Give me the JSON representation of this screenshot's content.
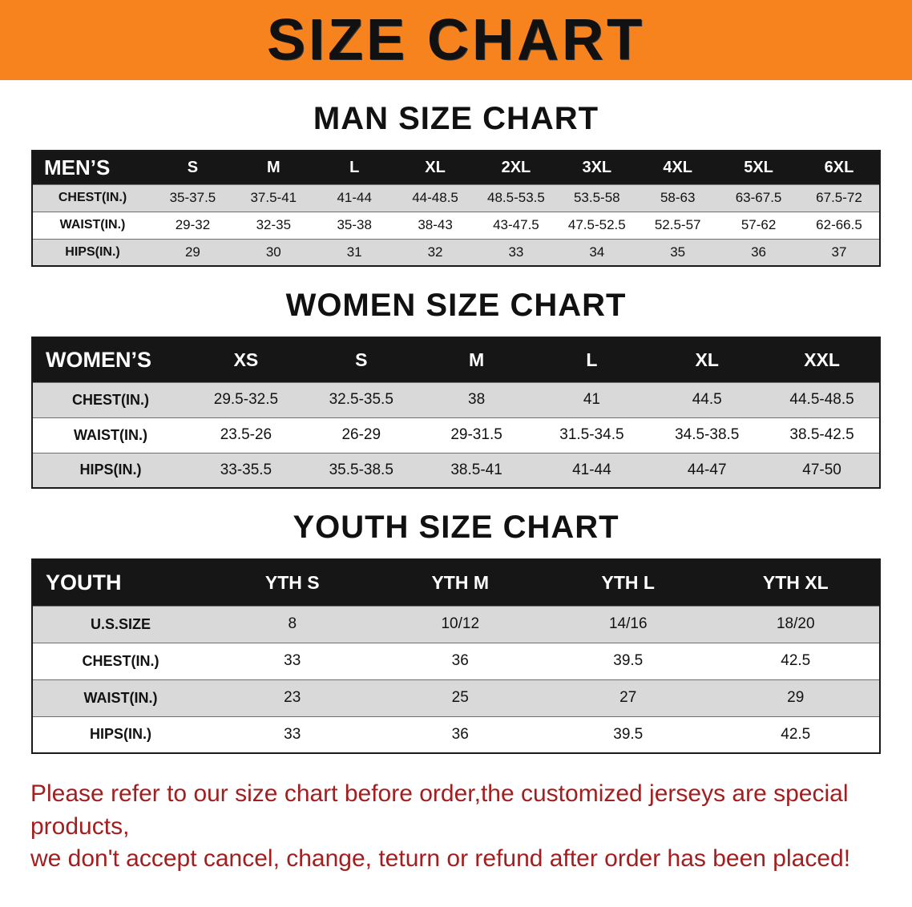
{
  "colors": {
    "banner_bg": "#F6831D",
    "header_bg": "#161616",
    "stripe": "#D9D9D9",
    "footer_red": "#A31E1E"
  },
  "banner": {
    "title": "SIZE CHART"
  },
  "sections": [
    {
      "title": "MAN SIZE CHART",
      "header_label": "MEN’S",
      "columns": [
        "S",
        "M",
        "L",
        "XL",
        "2XL",
        "3XL",
        "4XL",
        "5XL",
        "6XL"
      ],
      "rows": [
        {
          "label": "CHEST(IN.)",
          "values": [
            "35-37.5",
            "37.5-41",
            "41-44",
            "44-48.5",
            "48.5-53.5",
            "53.5-58",
            "58-63",
            "63-67.5",
            "67.5-72"
          ]
        },
        {
          "label": "WAIST(IN.)",
          "values": [
            "29-32",
            "32-35",
            "35-38",
            "38-43",
            "43-47.5",
            "47.5-52.5",
            "52.5-57",
            "57-62",
            "62-66.5"
          ]
        },
        {
          "label": "HIPS(IN.)",
          "values": [
            "29",
            "30",
            "31",
            "32",
            "33",
            "34",
            "35",
            "36",
            "37"
          ]
        }
      ]
    },
    {
      "title": "WOMEN SIZE CHART",
      "header_label": "WOMEN’S",
      "columns": [
        "XS",
        "S",
        "M",
        "L",
        "XL",
        "XXL"
      ],
      "rows": [
        {
          "label": "CHEST(IN.)",
          "values": [
            "29.5-32.5",
            "32.5-35.5",
            "38",
            "41",
            "44.5",
            "44.5-48.5"
          ]
        },
        {
          "label": "WAIST(IN.)",
          "values": [
            "23.5-26",
            "26-29",
            "29-31.5",
            "31.5-34.5",
            "34.5-38.5",
            "38.5-42.5"
          ]
        },
        {
          "label": "HIPS(IN.)",
          "values": [
            "33-35.5",
            "35.5-38.5",
            "38.5-41",
            "41-44",
            "44-47",
            "47-50"
          ]
        }
      ]
    },
    {
      "title": "YOUTH SIZE CHART",
      "header_label": "YOUTH",
      "columns": [
        "YTH S",
        "YTH M",
        "YTH L",
        "YTH XL"
      ],
      "rows": [
        {
          "label": "U.S.SIZE",
          "values": [
            "8",
            "10/12",
            "14/16",
            "18/20"
          ]
        },
        {
          "label": "CHEST(IN.)",
          "values": [
            "33",
            "36",
            "39.5",
            "42.5"
          ]
        },
        {
          "label": "WAIST(IN.)",
          "values": [
            "23",
            "25",
            "27",
            "29"
          ]
        },
        {
          "label": "HIPS(IN.)",
          "values": [
            "33",
            "36",
            "39.5",
            "42.5"
          ]
        }
      ]
    }
  ],
  "footer": {
    "line1": "Please refer to our size chart before order,the customized jerseys are special products,",
    "line2": "we don't accept cancel, change, teturn or refund after order has been placed!"
  }
}
